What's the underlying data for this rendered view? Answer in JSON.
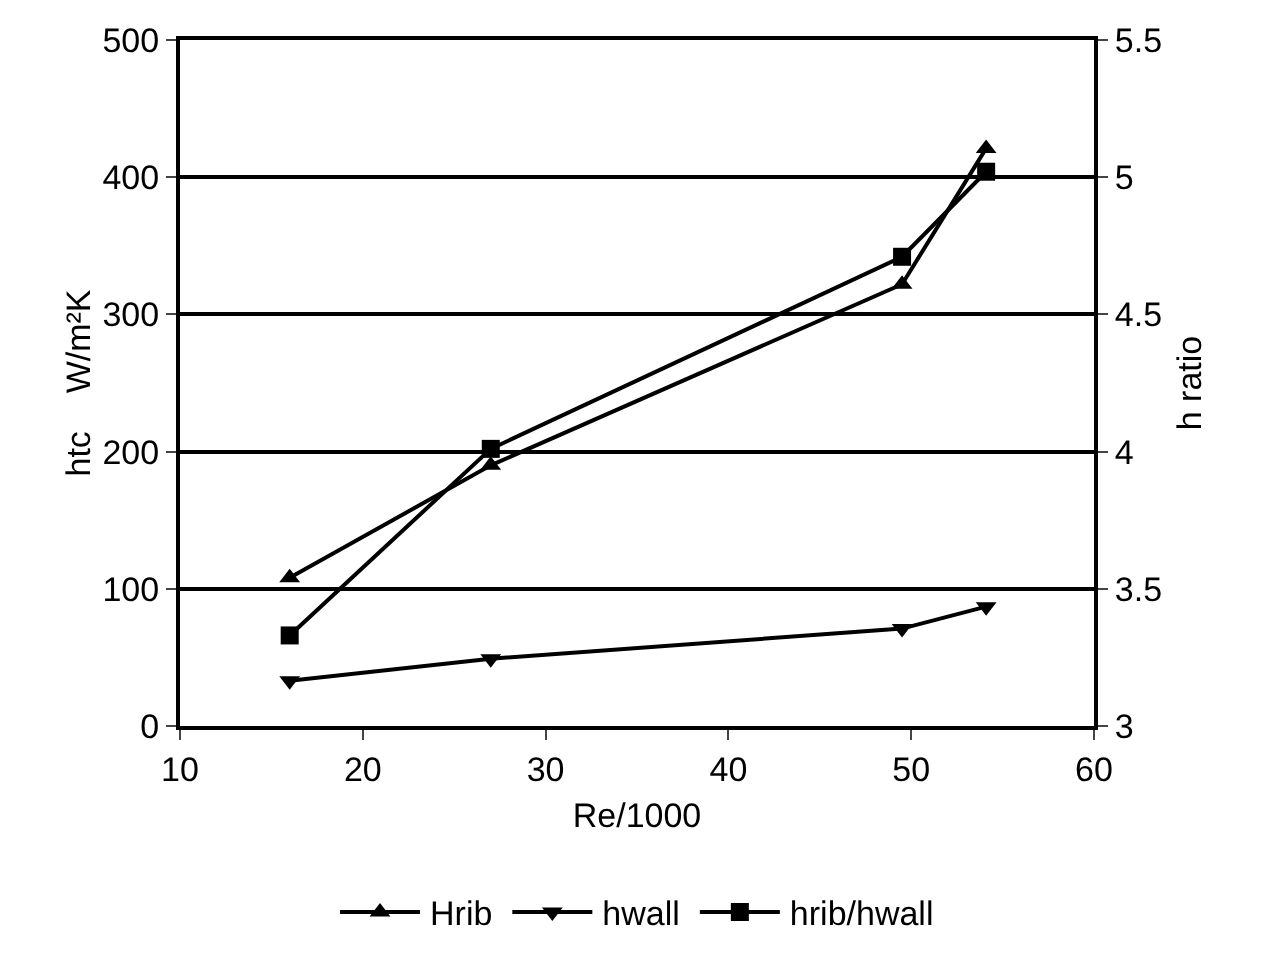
{
  "chart_data": {
    "type": "line",
    "xlabel": "Re/1000",
    "ylabel": "htc    W/m²K",
    "y2label": "h ratio",
    "xlim": [
      10,
      60
    ],
    "xticks": [
      10,
      20,
      30,
      40,
      50,
      60
    ],
    "ylim": [
      0,
      500
    ],
    "yticks": [
      0,
      100,
      200,
      300,
      400,
      500
    ],
    "y2lim": [
      3,
      5.5
    ],
    "y2ticks": [
      3,
      3.5,
      4,
      4.5,
      5,
      5.5
    ],
    "grid": "y",
    "legend": "bottom",
    "series": [
      {
        "name": "Hrib",
        "color": "#000000",
        "marker": "triangle",
        "x": [
          16,
          27,
          49.5,
          54.1
        ],
        "values": [
          108,
          190,
          322,
          421
        ]
      },
      {
        "name": "hwall",
        "color": "#000000",
        "marker": "triangle-down",
        "x": [
          16,
          27,
          49.5,
          54.1
        ],
        "values": [
          33,
          49,
          71,
          87
        ]
      },
      {
        "name": "hrib/hwall",
        "color": "#000000",
        "marker": "square",
        "axis": "y2",
        "x": [
          16,
          27,
          49.5,
          54.1
        ],
        "values": [
          3.33,
          4.01,
          4.71,
          5.02
        ]
      }
    ]
  }
}
